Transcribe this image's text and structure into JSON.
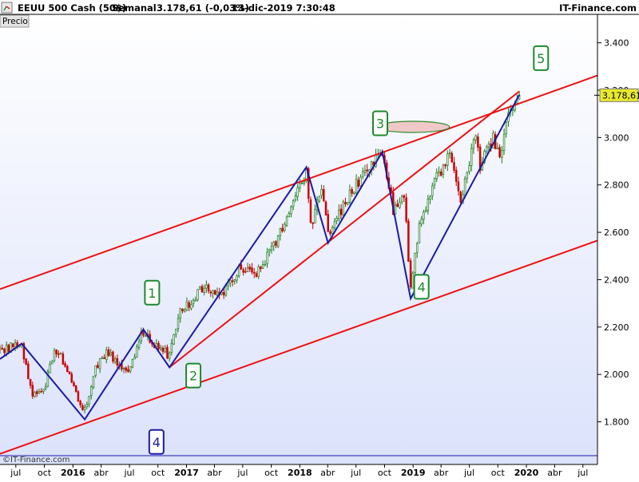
{
  "header": {
    "instrument": "EEUU 500 Cash (50$)",
    "timeframe": "Semanal",
    "quote": "3.178,61 (-0,03%)",
    "datetime": "13-dic-2019 7:30:48",
    "brand": "IT-Finance.com"
  },
  "panel_label": "Precio",
  "watermark": "©IT-Finance.com",
  "colors": {
    "background_top": "#ffffff",
    "background_bottom": "#dbe2fb",
    "candle_up": "#1a7a1a",
    "candle_down": "#cc0000",
    "channel_line": "#ee1111",
    "wave_line": "#1a1aa8",
    "label_green": "#1a8a2a",
    "label_blue": "#1a1aa8",
    "price_tag": "#e8e830",
    "ellipse_fill": "#f0c8c8",
    "ellipse_stroke": "#2e8b2e"
  },
  "chart_data": {
    "type": "candlestick",
    "title": "EEUU 500 Cash (50$)",
    "period": "weekly",
    "ylim": [
      1620,
      3520
    ],
    "y_ticks": [
      1800,
      2000,
      2200,
      2400,
      2600,
      2800,
      3000,
      3200,
      3400
    ],
    "y_tick_labels": [
      "1.800",
      "2.000",
      "2.200",
      "2.400",
      "2.600",
      "2.800",
      "3.000",
      "3.200",
      "3.400"
    ],
    "x_start": "2015-05-11",
    "x_end": "2020-08-17",
    "x_ticks": [
      {
        "label": "jul",
        "date": "2015-07-01",
        "bold": false
      },
      {
        "label": "oct",
        "date": "2015-10-01",
        "bold": false
      },
      {
        "label": "2016",
        "date": "2016-01-01",
        "bold": true
      },
      {
        "label": "abr",
        "date": "2016-04-01",
        "bold": false
      },
      {
        "label": "jul",
        "date": "2016-07-01",
        "bold": false
      },
      {
        "label": "oct",
        "date": "2016-10-01",
        "bold": false
      },
      {
        "label": "2017",
        "date": "2017-01-01",
        "bold": true
      },
      {
        "label": "abr",
        "date": "2017-04-01",
        "bold": false
      },
      {
        "label": "jul",
        "date": "2017-07-01",
        "bold": false
      },
      {
        "label": "oct",
        "date": "2017-10-01",
        "bold": false
      },
      {
        "label": "2018",
        "date": "2018-01-01",
        "bold": true
      },
      {
        "label": "abr",
        "date": "2018-04-01",
        "bold": false
      },
      {
        "label": "jul",
        "date": "2018-07-01",
        "bold": false
      },
      {
        "label": "oct",
        "date": "2018-10-01",
        "bold": false
      },
      {
        "label": "2019",
        "date": "2019-01-01",
        "bold": true
      },
      {
        "label": "abr",
        "date": "2019-04-01",
        "bold": false
      },
      {
        "label": "jul",
        "date": "2019-07-01",
        "bold": false
      },
      {
        "label": "oct",
        "date": "2019-10-01",
        "bold": false
      },
      {
        "label": "2020",
        "date": "2020-01-01",
        "bold": true
      },
      {
        "label": "abr",
        "date": "2020-04-01",
        "bold": false
      },
      {
        "label": "jul",
        "date": "2020-07-01",
        "bold": false
      }
    ],
    "last_price": 3178.61,
    "last_price_label": "3.178,61",
    "price_anchors": [
      [
        "2015-05-11",
        2105
      ],
      [
        "2015-07-20",
        2125
      ],
      [
        "2015-08-24",
        1910
      ],
      [
        "2015-09-28",
        1930
      ],
      [
        "2015-11-02",
        2105
      ],
      [
        "2015-12-07",
        2050
      ],
      [
        "2016-01-11",
        1920
      ],
      [
        "2016-02-08",
        1850
      ],
      [
        "2016-03-14",
        2025
      ],
      [
        "2016-04-18",
        2090
      ],
      [
        "2016-06-27",
        2020
      ],
      [
        "2016-08-15",
        2185
      ],
      [
        "2016-09-12",
        2135
      ],
      [
        "2016-11-07",
        2080
      ],
      [
        "2016-12-12",
        2260
      ],
      [
        "2017-03-06",
        2380
      ],
      [
        "2017-04-17",
        2330
      ],
      [
        "2017-06-19",
        2440
      ],
      [
        "2017-08-14",
        2420
      ],
      [
        "2017-10-16",
        2560
      ],
      [
        "2018-01-22",
        2850
      ],
      [
        "2018-02-05",
        2620
      ],
      [
        "2018-03-12",
        2780
      ],
      [
        "2018-04-02",
        2600
      ],
      [
        "2018-05-07",
        2670
      ],
      [
        "2018-06-18",
        2780
      ],
      [
        "2018-08-27",
        2900
      ],
      [
        "2018-09-24",
        2930
      ],
      [
        "2018-10-29",
        2700
      ],
      [
        "2018-12-03",
        2760
      ],
      [
        "2018-12-24",
        2360
      ],
      [
        "2019-01-21",
        2630
      ],
      [
        "2019-03-04",
        2790
      ],
      [
        "2019-04-29",
        2940
      ],
      [
        "2019-06-03",
        2740
      ],
      [
        "2019-07-22",
        3010
      ],
      [
        "2019-08-05",
        2880
      ],
      [
        "2019-09-16",
        3000
      ],
      [
        "2019-10-07",
        2910
      ],
      [
        "2019-11-04",
        3080
      ],
      [
        "2019-12-09",
        3178
      ]
    ],
    "annotations": {
      "channel_lines": [
        {
          "name": "upper-channel",
          "points": [
            [
              "2015-05-11",
              2360
            ],
            [
              "2020-08-17",
              3262
            ]
          ]
        },
        {
          "name": "lower-channel",
          "points": [
            [
              "2015-05-11",
              1665
            ],
            [
              "2020-08-17",
              2565
            ]
          ]
        },
        {
          "name": "rising-support",
          "points": [
            [
              "2016-11-07",
              2030
            ],
            [
              "2019-12-09",
              3195
            ]
          ]
        }
      ],
      "wave_path": [
        [
          "2015-05-11",
          2065
        ],
        [
          "2015-07-20",
          2130
        ],
        [
          "2016-02-08",
          1810
        ],
        [
          "2016-08-15",
          2190
        ],
        [
          "2016-11-07",
          2030
        ],
        [
          "2018-01-22",
          2875
        ],
        [
          "2018-04-02",
          2555
        ],
        [
          "2018-09-24",
          2940
        ],
        [
          "2018-12-24",
          2320
        ],
        [
          "2019-12-09",
          3180
        ]
      ],
      "wave_labels": [
        {
          "text": "1",
          "date": "2016-09-12",
          "price": 2345,
          "color": "green"
        },
        {
          "text": "2",
          "date": "2017-01-23",
          "price": 1995,
          "color": "green"
        },
        {
          "text": "3",
          "date": "2018-09-17",
          "price": 3060,
          "color": "green"
        },
        {
          "text": "4",
          "date": "2019-01-28",
          "price": 2370,
          "color": "green"
        },
        {
          "text": "5",
          "date": "2020-02-17",
          "price": 3335,
          "color": "green"
        },
        {
          "text": "4",
          "date": "2016-09-26",
          "price": 1715,
          "color": "blue"
        }
      ],
      "target_ellipse": {
        "center_date": "2018-12-31",
        "price": 3045
      }
    }
  }
}
